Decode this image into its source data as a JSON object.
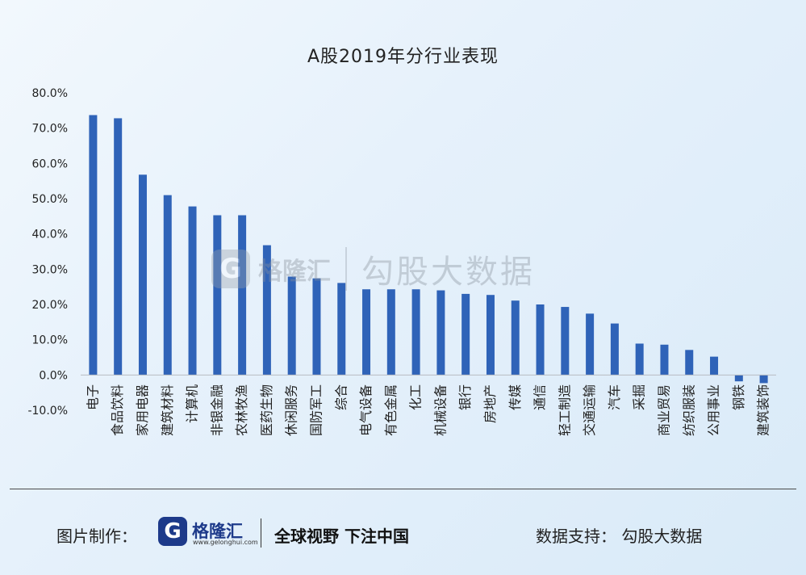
{
  "chart_data": {
    "type": "bar",
    "title": "A股2019年分行业表现",
    "xlabel": "",
    "ylabel": "",
    "ylim": [
      -10,
      80
    ],
    "ytick_labels": [
      "80.0%",
      "70.0%",
      "60.0%",
      "50.0%",
      "40.0%",
      "30.0%",
      "20.0%",
      "10.0%",
      "0.0%",
      "-10.0%"
    ],
    "ytick_values": [
      80,
      70,
      60,
      50,
      40,
      30,
      20,
      10,
      0,
      -10
    ],
    "grid": false,
    "bar_color": "#2f63b8",
    "categories": [
      "电子",
      "食品饮料",
      "家用电器",
      "建筑材料",
      "计算机",
      "非银金融",
      "农林牧渔",
      "医药生物",
      "休闲服务",
      "国防军工",
      "综合",
      "电气设备",
      "有色金属",
      "化工",
      "机械设备",
      "银行",
      "房地产",
      "传媒",
      "通信",
      "轻工制造",
      "交通运输",
      "汽车",
      "采掘",
      "商业贸易",
      "纺织服装",
      "公用事业",
      "钢铁",
      "建筑装饰"
    ],
    "values": [
      73.7,
      72.8,
      56.8,
      51.0,
      47.8,
      45.3,
      45.3,
      36.8,
      27.9,
      27.4,
      26.1,
      24.3,
      24.3,
      24.3,
      24.0,
      23.0,
      22.7,
      21.1,
      20.0,
      19.3,
      17.4,
      14.6,
      8.9,
      8.6,
      7.1,
      5.2,
      -1.8,
      -2.3
    ]
  },
  "watermark": {
    "brand": "格隆汇",
    "url": "www.gelonghui.com",
    "text": "勾股大数据",
    "logo_letter": "G"
  },
  "footer": {
    "credit_label": "图片制作：",
    "logo_letter": "G",
    "brand": "格隆汇",
    "url": "www.gelonghui.com",
    "slogan": "全球视野 下注中国",
    "source": "数据支持： 勾股大数据"
  }
}
